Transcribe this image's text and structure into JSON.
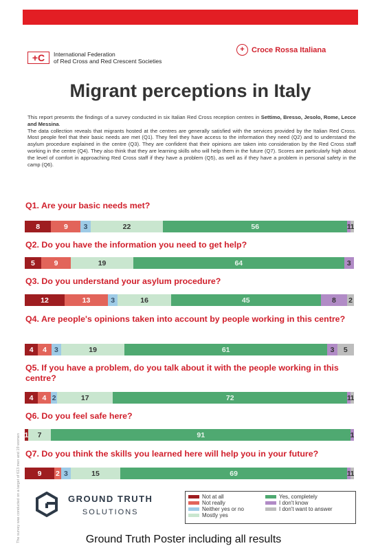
{
  "header": {
    "ifrc_logo": "International Federation\nof Red Cross and Red Crescent Societies",
    "ifrc_line1": "International Federation",
    "ifrc_line2": "of Red Cross and Red Crescent Societies",
    "cri_logo": "Croce Rossa Italiana"
  },
  "title": "Migrant perceptions in Italy",
  "intro": {
    "p1_start": "This report presents the findings of a survey conducted in six Italian Red Cross reception centres in ",
    "p1_bold": "Settimo, Bresso, Jesolo, Rome, Lecce and Messina",
    "p1_end": ".",
    "p2": "The data collection reveals that migrants hosted at the centres are generally satisfied with the services provided by the Italian Red Cross. Most people feel that their basic needs are met (Q1). They feel they have access to the information they need (Q2) and to understand the asylum procedure explained in the centre (Q3). They are confident that their opinions are taken into consideration by the Red Cross staff working in the centre (Q4). They also think that they are learning skills who will help them in the future (Q7). Scores are particularly high about the level of comfort in approaching Red Cross staff if they have a problem (Q5), as well as if they have a problem in personal safety in the camp (Q6)."
  },
  "colors": {
    "not_at_all": "#9e1d20",
    "not_really": "#e2645a",
    "neither": "#9ecbe6",
    "mostly_yes": "#c9e6cf",
    "yes_completely": "#4fa971",
    "dont_know": "#b18bc6",
    "dont_want": "#bdbdbd",
    "accent_red": "#d01f2b"
  },
  "questions": [
    {
      "text": "Q1. Are your basic needs met?",
      "values": [
        8,
        9,
        3,
        22,
        56,
        1,
        1
      ]
    },
    {
      "text": "Q2. Do you have the information you need to get help?",
      "values": [
        5,
        9,
        0,
        19,
        64,
        3,
        0
      ]
    },
    {
      "text": "Q3. Do you understand your asylum procedure?",
      "values": [
        12,
        13,
        3,
        16,
        45,
        8,
        2
      ]
    },
    {
      "text": "Q4. Are people's opinions taken into account by people working in this centre?",
      "values": [
        4,
        4,
        3,
        19,
        61,
        3,
        5
      ]
    },
    {
      "text": "Q5. If you have a problem, do you talk about it with the people working in this centre?",
      "values": [
        4,
        4,
        2,
        17,
        72,
        1,
        1
      ]
    },
    {
      "text": "Q6. Do you feel safe here?",
      "values": [
        1,
        0,
        0,
        7,
        91,
        1,
        0
      ]
    },
    {
      "text": "Q7. Do you think the skills you learned here will help you in your future?",
      "values": [
        9,
        2,
        3,
        15,
        69,
        1,
        1
      ]
    }
  ],
  "legend": {
    "not_at_all": "Not at all",
    "not_really": "Not really",
    "neither": "Neither yes or no",
    "mostly_yes": "Mostly yes",
    "yes_completely": "Yes, completely",
    "dont_know": "I don't know",
    "dont_want": "I don't want to answer"
  },
  "side_note": "The survey was conducted on a target of 613 men and 19 women",
  "footer": {
    "gts_line1": "GROUND TRUTH",
    "gts_line2": "SOLUTIONS"
  },
  "caption": "Ground Truth Poster including all results"
}
